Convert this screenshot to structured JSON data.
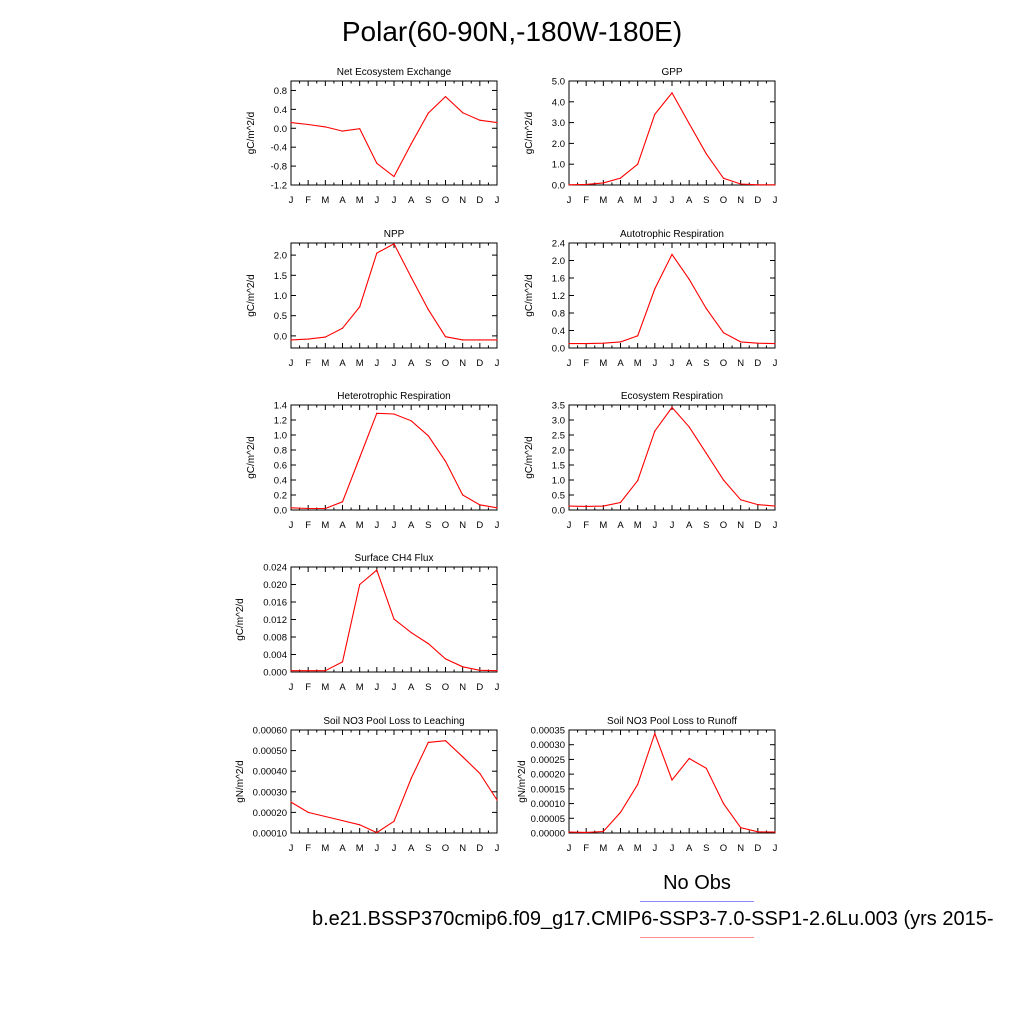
{
  "figure": {
    "title": "Polar(60-90N,-180W-180E)",
    "no_obs_label": "No Obs",
    "case_label": "b.e21.BSSP370cmip6.f09_g17.CMIP6-SSP3-7.0-SSP1-2.6Lu.003 (yrs 2015-"
  },
  "colors": {
    "model_line": "#ff0000",
    "obs_line": "#8c8cff",
    "axis": "#000000"
  },
  "chart_data": [
    {
      "type": "line",
      "title": "Net Ecosystem Exchange",
      "ylabel": "gC/m^2/d",
      "categories": [
        "J",
        "F",
        "M",
        "A",
        "M",
        "J",
        "J",
        "A",
        "S",
        "O",
        "N",
        "D",
        "J"
      ],
      "yticks": [
        "0.8",
        "0.4",
        "0.0",
        "-0.4",
        "-0.8",
        "-1.2"
      ],
      "ytick_values": [
        0.8,
        0.4,
        0.0,
        -0.4,
        -0.8,
        -1.2
      ],
      "ylim": [
        -1.2,
        1.0
      ],
      "series": [
        {
          "values": [
            0.12,
            0.08,
            0.03,
            -0.06,
            -0.01,
            -0.74,
            -1.02,
            -0.33,
            0.32,
            0.67,
            0.33,
            0.17,
            0.12
          ]
        }
      ]
    },
    {
      "type": "line",
      "title": "GPP",
      "ylabel": "gC/m^2/d",
      "categories": [
        "J",
        "F",
        "M",
        "A",
        "M",
        "J",
        "J",
        "A",
        "S",
        "O",
        "N",
        "D",
        "J"
      ],
      "yticks": [
        "5.0",
        "4.0",
        "3.0",
        "2.0",
        "1.0",
        "0.0"
      ],
      "ytick_values": [
        5,
        4,
        3,
        2,
        1,
        0
      ],
      "ylim": [
        0,
        5.0
      ],
      "series": [
        {
          "values": [
            0.01,
            0.03,
            0.1,
            0.33,
            1.0,
            3.4,
            4.43,
            2.95,
            1.5,
            0.32,
            0.05,
            0.01,
            0.01
          ]
        }
      ]
    },
    {
      "type": "line",
      "title": "NPP",
      "ylabel": "gC/m^2/d",
      "categories": [
        "J",
        "F",
        "M",
        "A",
        "M",
        "J",
        "J",
        "A",
        "S",
        "O",
        "N",
        "D",
        "J"
      ],
      "yticks": [
        "2.0",
        "1.5",
        "1.0",
        "0.5",
        "0.0"
      ],
      "ytick_values": [
        2.0,
        1.5,
        1.0,
        0.5,
        0.0
      ],
      "ylim": [
        -0.3,
        2.3
      ],
      "series": [
        {
          "values": [
            -0.1,
            -0.08,
            -0.03,
            0.19,
            0.72,
            2.05,
            2.28,
            1.45,
            0.65,
            -0.02,
            -0.1,
            -0.1,
            -0.1
          ]
        }
      ]
    },
    {
      "type": "line",
      "title": "Autotrophic Respiration",
      "ylabel": "gC/m^2/d",
      "categories": [
        "J",
        "F",
        "M",
        "A",
        "M",
        "J",
        "J",
        "A",
        "S",
        "O",
        "N",
        "D",
        "J"
      ],
      "yticks": [
        "2.4",
        "2.0",
        "1.6",
        "1.2",
        "0.8",
        "0.4",
        "0.0"
      ],
      "ytick_values": [
        2.4,
        2.0,
        1.6,
        1.2,
        0.8,
        0.4,
        0.0
      ],
      "ylim": [
        0,
        2.4
      ],
      "series": [
        {
          "values": [
            0.1,
            0.1,
            0.11,
            0.14,
            0.28,
            1.35,
            2.14,
            1.57,
            0.9,
            0.35,
            0.14,
            0.11,
            0.1
          ]
        }
      ]
    },
    {
      "type": "line",
      "title": "Heterotrophic Respiration",
      "ylabel": "gC/m^2/d",
      "categories": [
        "J",
        "F",
        "M",
        "A",
        "M",
        "J",
        "J",
        "A",
        "S",
        "O",
        "N",
        "D",
        "J"
      ],
      "yticks": [
        "1.4",
        "1.2",
        "1.0",
        "0.8",
        "0.6",
        "0.4",
        "0.2",
        "0.0"
      ],
      "ytick_values": [
        1.4,
        1.2,
        1.0,
        0.8,
        0.6,
        0.4,
        0.2,
        0.0
      ],
      "ylim": [
        0,
        1.4
      ],
      "series": [
        {
          "values": [
            0.03,
            0.02,
            0.02,
            0.11,
            0.7,
            1.29,
            1.28,
            1.19,
            0.99,
            0.65,
            0.2,
            0.07,
            0.03
          ]
        }
      ]
    },
    {
      "type": "line",
      "title": "Ecosystem Respiration",
      "ylabel": "gC/m^2/d",
      "categories": [
        "J",
        "F",
        "M",
        "A",
        "M",
        "J",
        "J",
        "A",
        "S",
        "O",
        "N",
        "D",
        "J"
      ],
      "yticks": [
        "3.5",
        "3.0",
        "2.5",
        "2.0",
        "1.5",
        "1.0",
        "0.5",
        "0.0"
      ],
      "ytick_values": [
        3.5,
        3.0,
        2.5,
        2.0,
        1.5,
        1.0,
        0.5,
        0.0
      ],
      "ylim": [
        0,
        3.5
      ],
      "series": [
        {
          "values": [
            0.13,
            0.12,
            0.13,
            0.25,
            0.98,
            2.63,
            3.42,
            2.77,
            1.89,
            1.0,
            0.34,
            0.18,
            0.13
          ]
        }
      ]
    },
    {
      "type": "line",
      "title": "Surface CH4 Flux",
      "ylabel": "gC/m^2/d",
      "categories": [
        "J",
        "F",
        "M",
        "A",
        "M",
        "J",
        "J",
        "A",
        "S",
        "O",
        "N",
        "D",
        "J"
      ],
      "yticks": [
        "0.024",
        "0.020",
        "0.016",
        "0.012",
        "0.008",
        "0.004",
        "0.000"
      ],
      "ytick_values": [
        0.024,
        0.02,
        0.016,
        0.012,
        0.008,
        0.004,
        0.0
      ],
      "ylim": [
        0,
        0.024
      ],
      "series": [
        {
          "values": [
            0.0003,
            0.0003,
            0.0003,
            0.0023,
            0.02,
            0.0233,
            0.0121,
            0.009,
            0.0065,
            0.003,
            0.0012,
            0.0004,
            0.0003
          ]
        }
      ]
    },
    {
      "type": "line",
      "title": "Soil NO3 Pool Loss to Leaching",
      "ylabel": "gN/m^2/d",
      "categories": [
        "J",
        "F",
        "M",
        "A",
        "M",
        "J",
        "J",
        "A",
        "S",
        "O",
        "N",
        "D",
        "J"
      ],
      "yticks": [
        "0.00060",
        "0.00050",
        "0.00040",
        "0.00030",
        "0.00020",
        "0.00010"
      ],
      "ytick_values": [
        0.0006,
        0.0005,
        0.0004,
        0.0003,
        0.0002,
        0.0001
      ],
      "ylim": [
        0.0001,
        0.0006
      ],
      "series": [
        {
          "values": [
            0.00025,
            0.0002,
            0.00018,
            0.00016,
            0.00014,
            0.000102,
            0.000157,
            0.000365,
            0.00054,
            0.000548,
            0.00047,
            0.00039,
            0.00026
          ]
        }
      ]
    },
    {
      "type": "line",
      "title": "Soil NO3 Pool Loss to Runoff",
      "ylabel": "gN/m^2/d",
      "categories": [
        "J",
        "F",
        "M",
        "A",
        "M",
        "J",
        "J",
        "A",
        "S",
        "O",
        "N",
        "D",
        "J"
      ],
      "yticks": [
        "0.00035",
        "0.00030",
        "0.00025",
        "0.00020",
        "0.00015",
        "0.00010",
        "0.00005",
        "0.00000"
      ],
      "ytick_values": [
        0.00035,
        0.0003,
        0.00025,
        0.0002,
        0.00015,
        0.0001,
        5e-05,
        0.0
      ],
      "ylim": [
        0,
        0.00035
      ],
      "series": [
        {
          "values": [
            3e-06,
            2e-06,
            5e-06,
            7e-05,
            0.000165,
            0.000338,
            0.00018,
            0.000253,
            0.00022,
            0.0001,
            1.8e-05,
            4e-06,
            3e-06
          ]
        }
      ]
    }
  ]
}
